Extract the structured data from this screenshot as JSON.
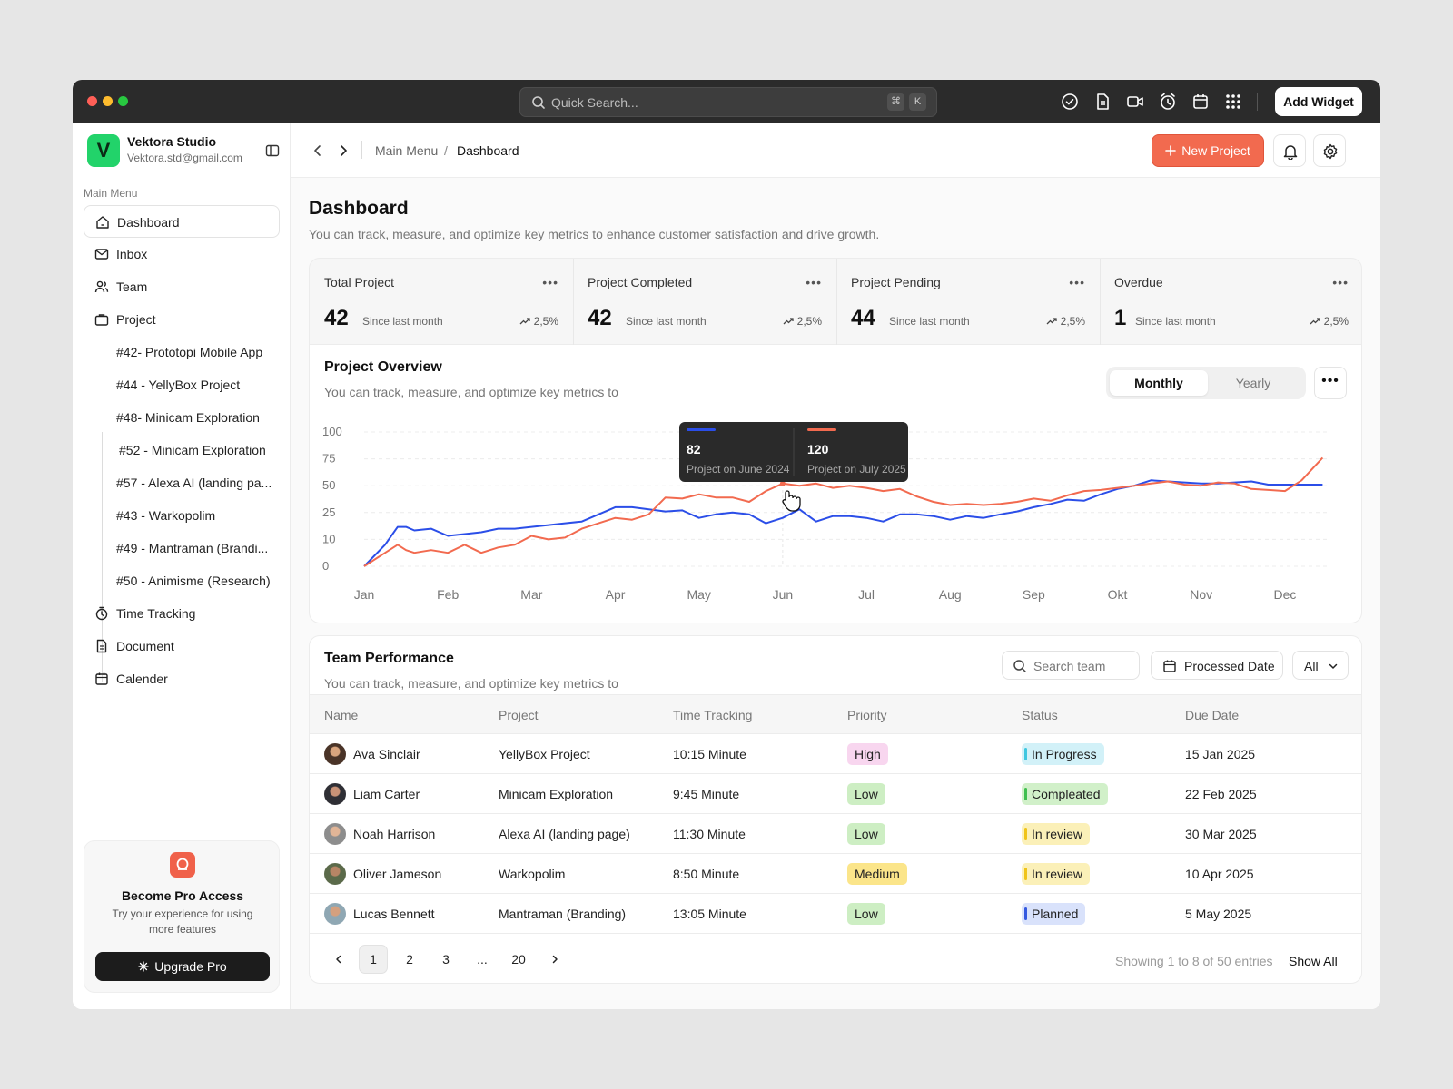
{
  "titlebar": {
    "search_placeholder": "Quick Search...",
    "shortcut_key1": "⌘",
    "shortcut_key2": "K",
    "add_widget_label": "Add Widget",
    "icons": [
      "check-circle-icon",
      "document-icon",
      "video-icon",
      "alarm-icon",
      "calendar-icon",
      "grid-icon"
    ],
    "dot_colors": [
      "#ff5f57",
      "#febc2e",
      "#28c840"
    ]
  },
  "sidebar": {
    "workspace_name": "Vektora Studio",
    "workspace_email": "Vektora.std@gmail.com",
    "logo_letter": "V",
    "section_label": "Main Menu",
    "items": [
      {
        "label": "Dashboard",
        "icon": "home-icon",
        "active": true
      },
      {
        "label": "Inbox",
        "icon": "mail-icon"
      },
      {
        "label": "Team",
        "icon": "users-icon"
      },
      {
        "label": "Project",
        "icon": "briefcase-icon"
      }
    ],
    "projects": [
      "#42- Prototopi  Mobile App",
      "#44 - YellyBox Project",
      "#48- Minicam Exploration",
      "#52 - Minicam Exploration",
      "#57 - Alexa AI (landing pa...",
      "#43 - Warkopolim",
      "#49 - Mantraman (Brandi...",
      "#50 - Animisme (Research)"
    ],
    "bottom_items": [
      {
        "label": "Time Tracking",
        "icon": "stopwatch-icon"
      },
      {
        "label": "Document",
        "icon": "document-icon"
      },
      {
        "label": "Calender",
        "icon": "calendar-icon"
      }
    ],
    "pro": {
      "title": "Become Pro Access",
      "description": "Try your experience for using more features",
      "button_label": "Upgrade Pro"
    }
  },
  "topbar": {
    "breadcrumb_parent": "Main Menu",
    "breadcrumb_separator": "/",
    "breadcrumb_current": "Dashboard",
    "new_project_label": "New Project"
  },
  "header": {
    "title": "Dashboard",
    "description": "You can track, measure, and optimize key metrics to enhance customer satisfaction and drive growth."
  },
  "stats": [
    {
      "title": "Total Project",
      "value": "42",
      "since": "Since last month",
      "trend": "2,5%"
    },
    {
      "title": "Project Completed",
      "value": "42",
      "since": "Since last month",
      "trend": "2,5%"
    },
    {
      "title": "Project Pending",
      "value": "44",
      "since": "Since last month",
      "trend": "2,5%"
    },
    {
      "title": "Overdue",
      "value": "1",
      "since": "Since last month",
      "trend": "2,5%"
    }
  ],
  "overview": {
    "title": "Project Overview",
    "description": "You can track, measure, and optimize key metrics to",
    "toggle": [
      "Monthly",
      "Yearly"
    ],
    "toggle_active": "Monthly",
    "tooltip": [
      {
        "value": "82",
        "label": "Project on June 2024",
        "color": "#2b4ee8"
      },
      {
        "value": "120",
        "label": "Project on July 2025",
        "color": "#f26a4f"
      }
    ]
  },
  "chart_data": {
    "type": "line",
    "title": "",
    "xlabel": "",
    "ylabel": "",
    "categories": [
      "Jan",
      "Feb",
      "Mar",
      "Apr",
      "May",
      "Jun",
      "Jul",
      "Aug",
      "Sep",
      "Okt",
      "Nov",
      "Dec"
    ],
    "y_ticks": [
      0,
      10,
      25,
      50,
      75,
      100
    ],
    "x": [
      0,
      0.25,
      0.4,
      0.5,
      0.6,
      0.8,
      1.0,
      1.2,
      1.4,
      1.6,
      1.8,
      2.0,
      2.2,
      2.4,
      2.6,
      2.8,
      3.0,
      3.2,
      3.4,
      3.6,
      3.8,
      4.0,
      4.2,
      4.4,
      4.6,
      4.8,
      5.0,
      5.2,
      5.4,
      5.6,
      5.8,
      6.0,
      6.2,
      6.4,
      6.6,
      6.8,
      7.0,
      7.2,
      7.4,
      7.6,
      7.8,
      8.0,
      8.2,
      8.4,
      8.6,
      8.8,
      9.0,
      9.2,
      9.4,
      9.6,
      9.8,
      10.0,
      10.2,
      10.4,
      10.6,
      10.8,
      11.0,
      11.2,
      11.45
    ],
    "series": [
      {
        "color": "#2b4ee8",
        "values": [
          0,
          8,
          17,
          17,
          15,
          16,
          12,
          13,
          14,
          16,
          16,
          17,
          18,
          19,
          20,
          24,
          30,
          30,
          28,
          26,
          27,
          22,
          24,
          25,
          24,
          19,
          22,
          28,
          20,
          23,
          23,
          22,
          20,
          24,
          24,
          23,
          21,
          23,
          22,
          24,
          26,
          30,
          33,
          37,
          36,
          42,
          47,
          50,
          55,
          54,
          53,
          52,
          52,
          53,
          54,
          51,
          51,
          51,
          51
        ]
      },
      {
        "color": "#f26a4f",
        "values": [
          0,
          5,
          8,
          6,
          5,
          6,
          5,
          8,
          5,
          7,
          8,
          12,
          10,
          11,
          16,
          19,
          22,
          21,
          24,
          39,
          38,
          42,
          39,
          39,
          35,
          45,
          52,
          50,
          52,
          48,
          50,
          48,
          45,
          47,
          40,
          35,
          32,
          33,
          32,
          33,
          35,
          38,
          36,
          41,
          45,
          46,
          48,
          50,
          52,
          54,
          51,
          50,
          53,
          52,
          47,
          46,
          45,
          55,
          76
        ]
      }
    ],
    "legend": false,
    "grid": true
  },
  "team": {
    "title": "Team Performance",
    "description": "You can track, measure, and optimize key metrics to",
    "search_placeholder": "Search team",
    "date_filter": "Processed Date",
    "select_value": "All",
    "columns": [
      "Name",
      "Project",
      "Time Tracking",
      "Priority",
      "Status",
      "Due Date"
    ],
    "rows": [
      {
        "name": "Ava Sinclair",
        "project": "YellyBox Project",
        "time": "10:15 Minute",
        "priority": "High",
        "status": "In Progress",
        "due": "15 Jan 2025"
      },
      {
        "name": "Liam Carter",
        "project": "Minicam Exploration",
        "time": "9:45 Minute",
        "priority": "Low",
        "status": "Compleated",
        "due": "22 Feb 2025"
      },
      {
        "name": "Noah Harrison",
        "project": "Alexa AI (landing page)",
        "time": "11:30 Minute",
        "priority": "Low",
        "status": "In review",
        "due": "30 Mar 2025"
      },
      {
        "name": "Oliver Jameson",
        "project": "Warkopolim",
        "time": "8:50 Minute",
        "priority": "Medium",
        "status": "In review",
        "due": "10 Apr 2025"
      },
      {
        "name": "Lucas Bennett",
        "project": "Mantraman (Branding)",
        "time": "13:05 Minute",
        "priority": "Low",
        "status": "Planned",
        "due": "5 May 2025"
      }
    ],
    "priority_colors": {
      "High": "#f8d6ef",
      "Low": "#cdeec3",
      "Medium": "#fbe58a"
    },
    "status_colors": {
      "In Progress": {
        "bg": "#d2f1f8",
        "bar": "#3ec7e0"
      },
      "Compleated": {
        "bg": "#d1f0c9",
        "bar": "#3fbf4f"
      },
      "In review": {
        "bg": "#fbf0b8",
        "bar": "#f0c419"
      },
      "Planned": {
        "bg": "#d9e2fb",
        "bar": "#3559e0"
      }
    },
    "pagination": {
      "pages": [
        "1",
        "2",
        "3",
        "...",
        "20"
      ],
      "active": "1",
      "info": "Showing 1 to 8 of 50 entries",
      "show_all": "Show All"
    }
  }
}
